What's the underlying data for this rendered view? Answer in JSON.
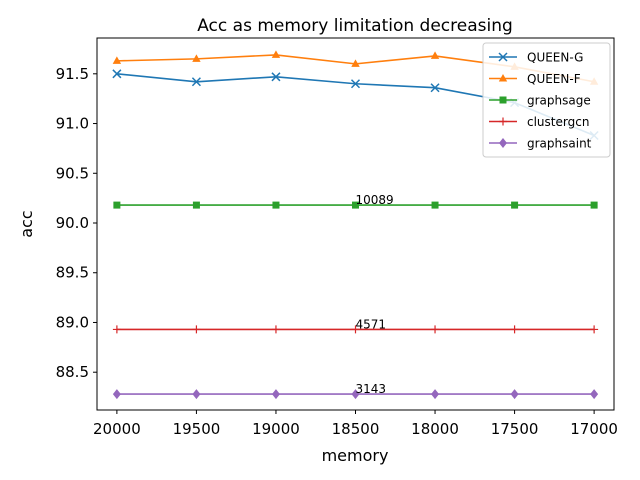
{
  "chart_data": {
    "type": "line",
    "title": "Acc as memory limitation decreasing",
    "xlabel": "memory",
    "ylabel": "acc",
    "x": [
      20000,
      19500,
      19000,
      18500,
      18000,
      17500,
      17000
    ],
    "x_ticks": [
      "20000",
      "19500",
      "19000",
      "18500",
      "18000",
      "17500",
      "17000"
    ],
    "x_reversed": true,
    "xlim": [
      20125,
      16875
    ],
    "ylim": [
      88.12,
      91.86
    ],
    "y_ticks": [
      88.5,
      89.0,
      89.5,
      90.0,
      90.5,
      91.0,
      91.5
    ],
    "y_tick_labels": [
      "88.5",
      "89.0",
      "89.5",
      "90.0",
      "90.5",
      "91.0",
      "91.5"
    ],
    "grid": false,
    "legend_position": "top-right",
    "series": [
      {
        "name": "QUEEN-G",
        "color": "#1f77b4",
        "marker": "x",
        "values": [
          91.5,
          91.42,
          91.47,
          91.4,
          91.36,
          91.21,
          90.88
        ]
      },
      {
        "name": "QUEEN-F",
        "color": "#ff7f0e",
        "marker": "triangle",
        "values": [
          91.63,
          91.65,
          91.69,
          91.6,
          91.68,
          91.57,
          91.42
        ]
      },
      {
        "name": "graphsage",
        "color": "#2ca02c",
        "marker": "square",
        "values": [
          90.18,
          90.18,
          90.18,
          90.18,
          90.18,
          90.18,
          90.18
        ]
      },
      {
        "name": "clustergcn",
        "color": "#d62728",
        "marker": "plus",
        "values": [
          88.93,
          88.93,
          88.93,
          88.93,
          88.93,
          88.93,
          88.93
        ]
      },
      {
        "name": "graphsaint",
        "color": "#9467bd",
        "marker": "diamond",
        "values": [
          88.28,
          88.28,
          88.28,
          88.28,
          88.28,
          88.28,
          88.28
        ]
      }
    ],
    "annotations": [
      {
        "text": "10089",
        "x": 18500,
        "y": 90.18
      },
      {
        "text": "4571",
        "x": 18500,
        "y": 88.93
      },
      {
        "text": "3143",
        "x": 18500,
        "y": 88.28
      }
    ]
  }
}
